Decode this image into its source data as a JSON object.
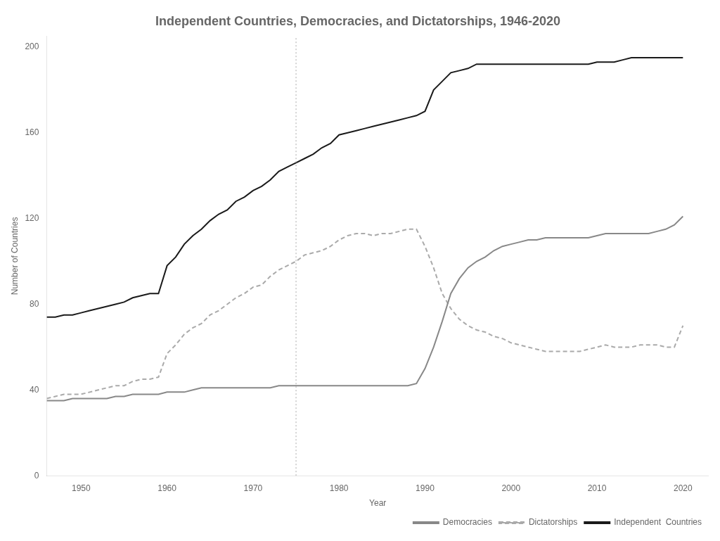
{
  "chart_data": {
    "type": "line",
    "title": "Independent Countries, Democracies, and Dictatorships, 1946-2020",
    "x_label": "Year",
    "y_label": "Number of Countries",
    "x": [
      1946,
      1947,
      1948,
      1949,
      1950,
      1951,
      1952,
      1953,
      1954,
      1955,
      1956,
      1957,
      1958,
      1959,
      1960,
      1961,
      1962,
      1963,
      1964,
      1965,
      1966,
      1967,
      1968,
      1969,
      1970,
      1971,
      1972,
      1973,
      1974,
      1975,
      1976,
      1977,
      1978,
      1979,
      1980,
      1981,
      1982,
      1983,
      1984,
      1985,
      1986,
      1987,
      1988,
      1989,
      1990,
      1991,
      1992,
      1993,
      1994,
      1995,
      1996,
      1997,
      1998,
      1999,
      2000,
      2001,
      2002,
      2003,
      2004,
      2005,
      2006,
      2007,
      2008,
      2009,
      2010,
      2011,
      2012,
      2013,
      2014,
      2015,
      2016,
      2017,
      2018,
      2019,
      2020
    ],
    "series": [
      {
        "name": "Democracies",
        "color": "#888888",
        "line_style": "solid",
        "values": [
          35,
          35,
          35,
          36,
          36,
          36,
          36,
          36,
          37,
          37,
          38,
          38,
          38,
          38,
          39,
          39,
          39,
          40,
          41,
          41,
          41,
          41,
          41,
          41,
          41,
          41,
          41,
          42,
          42,
          42,
          42,
          42,
          42,
          42,
          42,
          42,
          42,
          42,
          42,
          42,
          42,
          42,
          42,
          43,
          50,
          60,
          72,
          85,
          92,
          97,
          100,
          102,
          105,
          107,
          108,
          109,
          110,
          110,
          111,
          111,
          111,
          111,
          111,
          111,
          112,
          113,
          113,
          113,
          113,
          113,
          113,
          114,
          115,
          117,
          121
        ]
      },
      {
        "name": "Dictatorships",
        "color": "#aaaaaa",
        "line_style": "dashed",
        "values": [
          36,
          37,
          38,
          38,
          38,
          39,
          40,
          41,
          42,
          42,
          44,
          45,
          45,
          46,
          57,
          61,
          66,
          69,
          71,
          75,
          77,
          80,
          83,
          85,
          88,
          89,
          93,
          96,
          98,
          100,
          103,
          104,
          105,
          107,
          110,
          112,
          113,
          113,
          112,
          113,
          113,
          114,
          115,
          115,
          107,
          97,
          85,
          78,
          73,
          70,
          68,
          67,
          65,
          64,
          62,
          61,
          60,
          59,
          58,
          58,
          58,
          58,
          58,
          59,
          60,
          61,
          60,
          60,
          60,
          61,
          61,
          61,
          60,
          60,
          70
        ]
      },
      {
        "name": "Independent  Countries",
        "color": "#1a1a1a",
        "line_style": "solid",
        "values": [
          74,
          74,
          75,
          75,
          76,
          77,
          78,
          79,
          80,
          81,
          83,
          84,
          85,
          85,
          98,
          102,
          108,
          112,
          115,
          119,
          122,
          124,
          128,
          130,
          133,
          135,
          138,
          142,
          144,
          146,
          148,
          150,
          153,
          155,
          159,
          160,
          161,
          162,
          163,
          164,
          165,
          166,
          167,
          168,
          170,
          180,
          184,
          188,
          189,
          190,
          192,
          192,
          192,
          192,
          192,
          192,
          192,
          192,
          192,
          192,
          192,
          192,
          192,
          192,
          193,
          193,
          193,
          194,
          195,
          195,
          195,
          195,
          195,
          195,
          195
        ]
      }
    ],
    "xlim": [
      1946,
      2023
    ],
    "xticks": [
      1950,
      1960,
      1970,
      1980,
      1990,
      2000,
      2010,
      2020
    ],
    "ylim": [
      0,
      205
    ],
    "yticks": [
      0,
      40,
      80,
      120,
      160,
      200
    ],
    "vlines": [
      1975
    ],
    "grid": false,
    "legend": "lower right"
  }
}
